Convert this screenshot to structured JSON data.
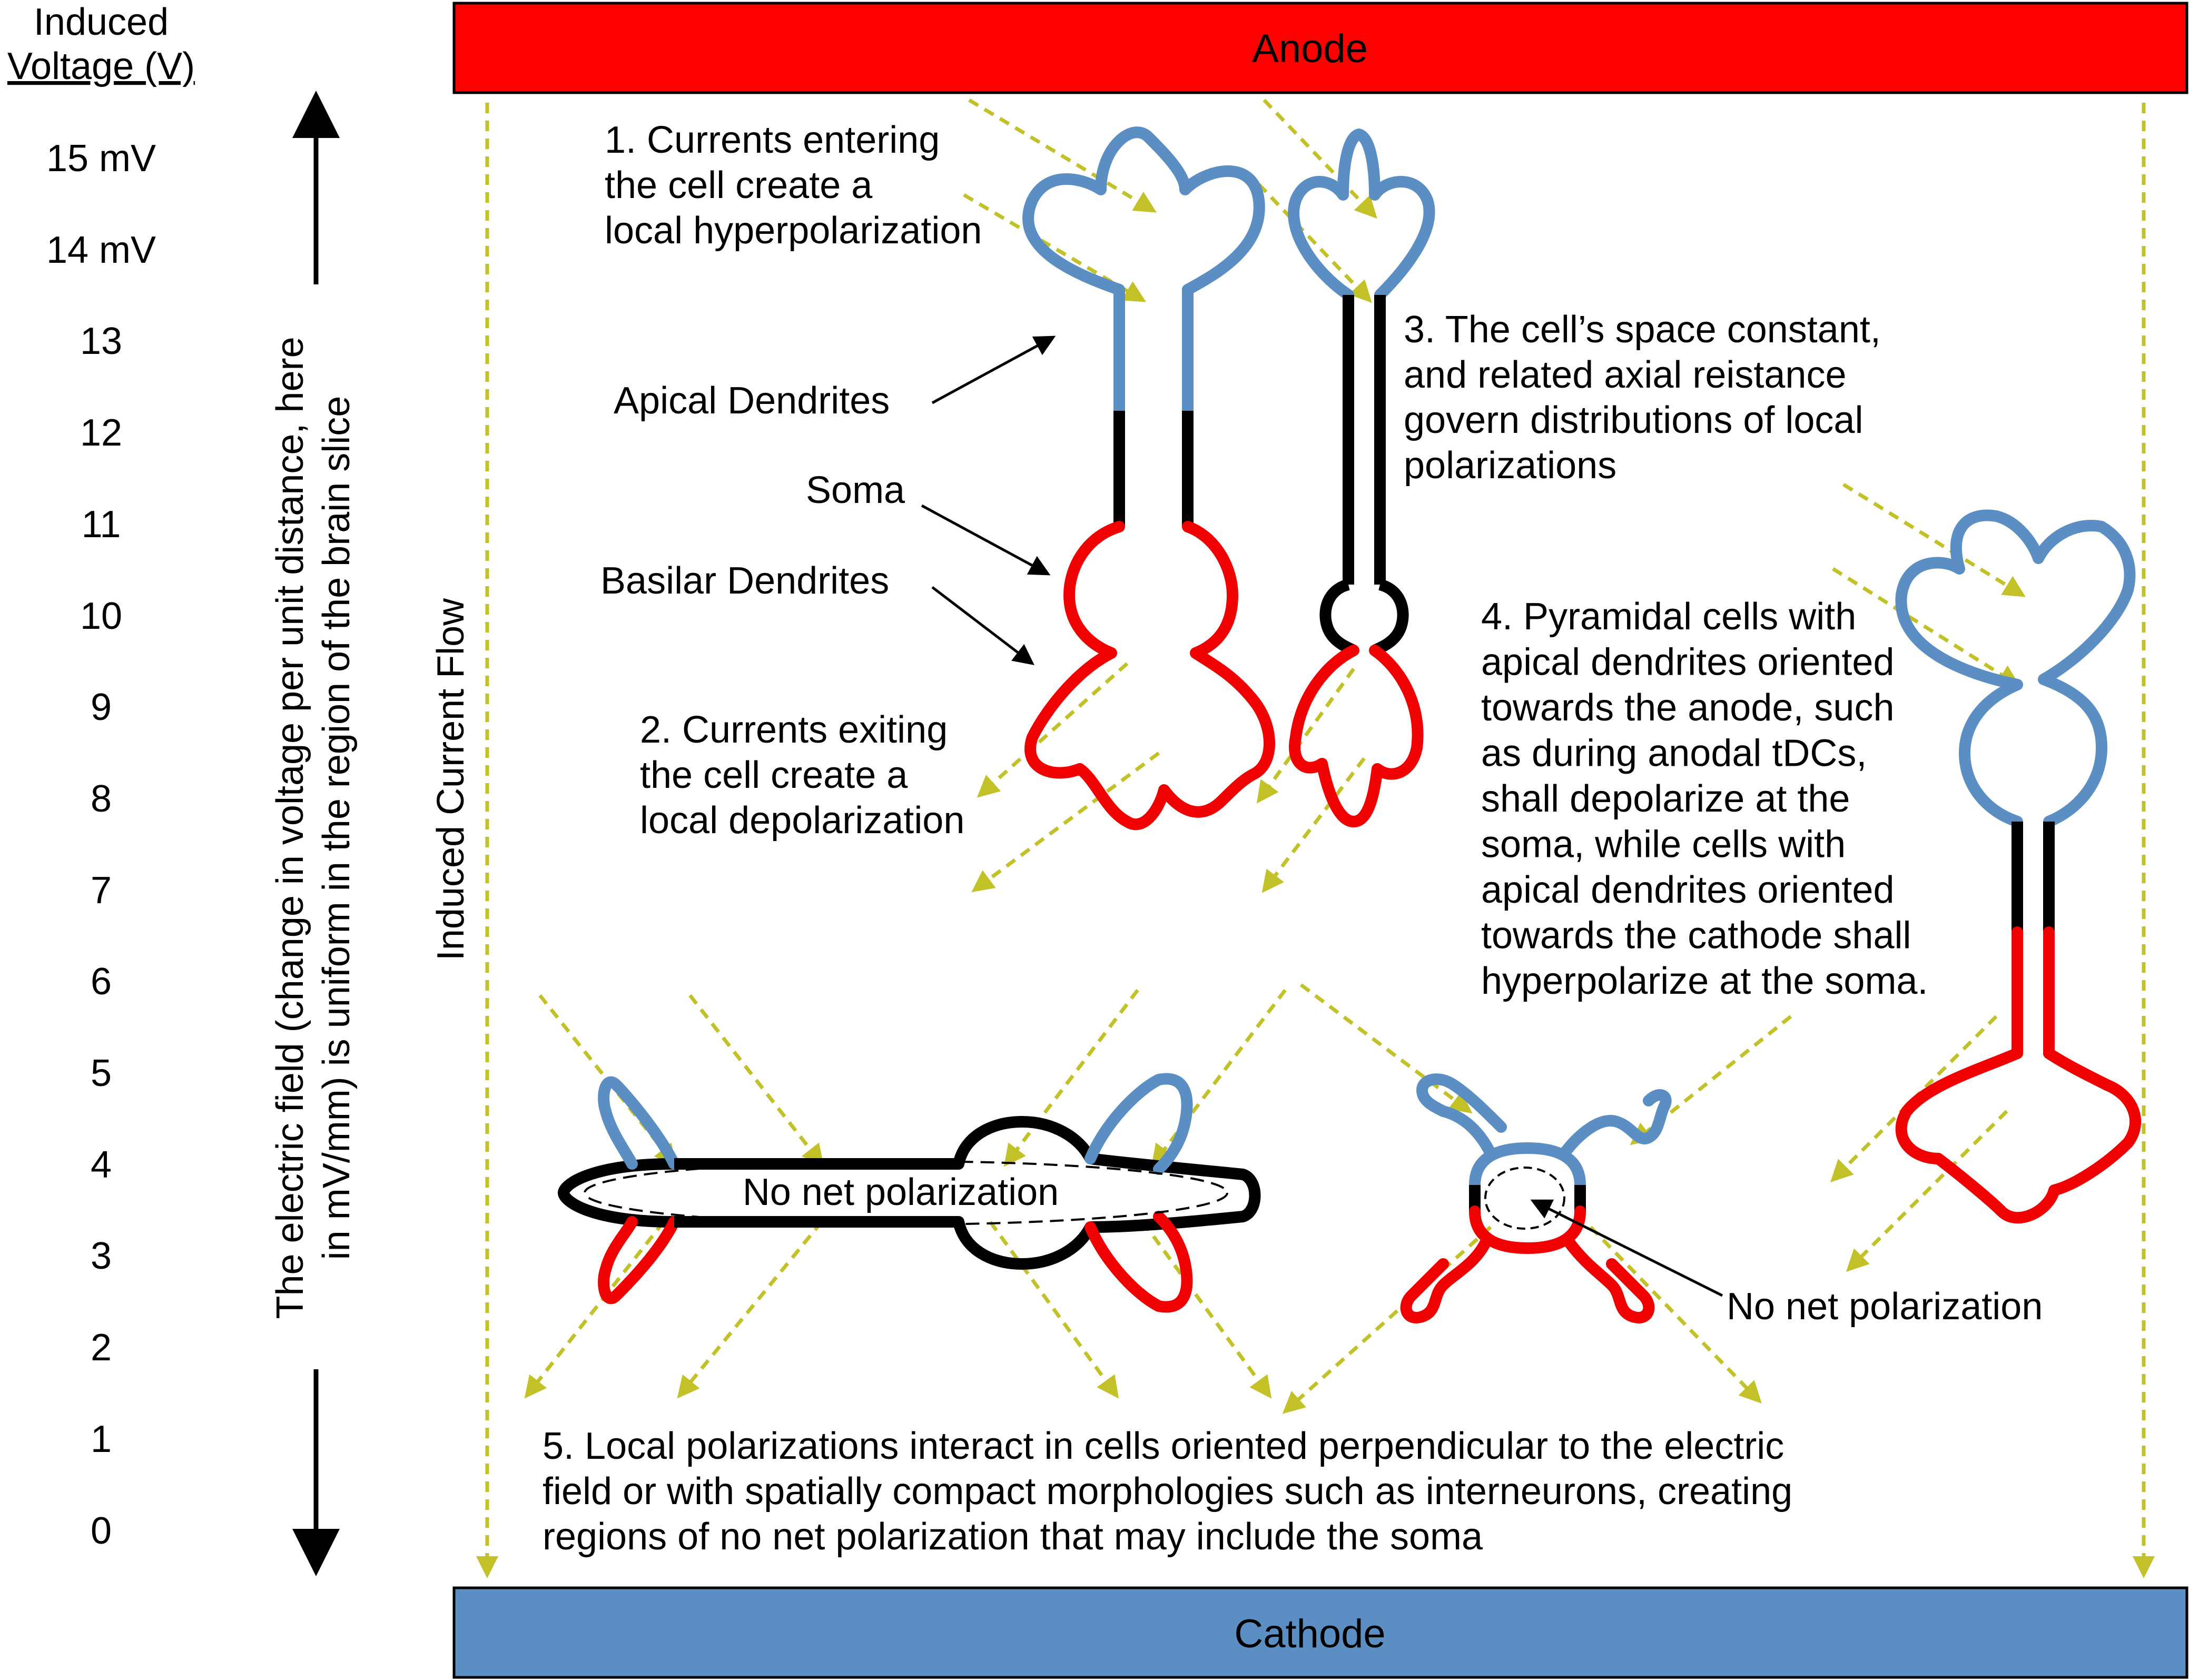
{
  "voltage_scale": {
    "title_line1": "Induced",
    "title_line2": "Voltage (V)",
    "ticks": [
      "15 mV",
      "14 mV",
      "13",
      "12",
      "11",
      "10",
      "9",
      "8",
      "7",
      "6",
      "5",
      "4",
      "3",
      "2",
      "1",
      "0"
    ],
    "axis_label_line1": "The electric field (change in voltage per unit distance, here",
    "axis_label_line2": "in mV/mm) is uniform in the region of the brain slice"
  },
  "current_flow_label": "Induced Current Flow",
  "electrodes": {
    "anode": "Anode",
    "cathode": "Cathode",
    "anode_color": "#ff0000",
    "cathode_color": "#5b8fc3"
  },
  "colors": {
    "hyperpolarized": "#5b8fc3",
    "depolarized": "#f00000",
    "field_arrow": "#c2c228"
  },
  "labels": {
    "apical": "Apical Dendrites",
    "soma": "Soma",
    "basilar": "Basilar Dendrites",
    "no_net_1": "No net polarization",
    "no_net_2": "No net polarization"
  },
  "notes": {
    "n1": [
      "1. Currents entering",
      "the cell create a",
      "local hyperpolarization"
    ],
    "n2": [
      "2. Currents exiting",
      "the cell create a",
      "local depolarization"
    ],
    "n3": [
      "3. The cell’s space constant,",
      "and related axial reistance",
      "govern distributions of local",
      "polarizations"
    ],
    "n4": [
      "4. Pyramidal cells with",
      "apical dendrites oriented",
      "towards the anode, such",
      "as during anodal tDCs,",
      "shall depolarize at the",
      "soma, while cells with",
      "apical dendrites oriented",
      "towards the cathode shall",
      "hyperpolarize at the soma."
    ],
    "n5": [
      "5. Local polarizations interact in cells oriented perpendicular to the electric",
      "field or with spatially compact morphologies such as interneurons, creating",
      "regions of no net polarization that may include the soma"
    ]
  }
}
